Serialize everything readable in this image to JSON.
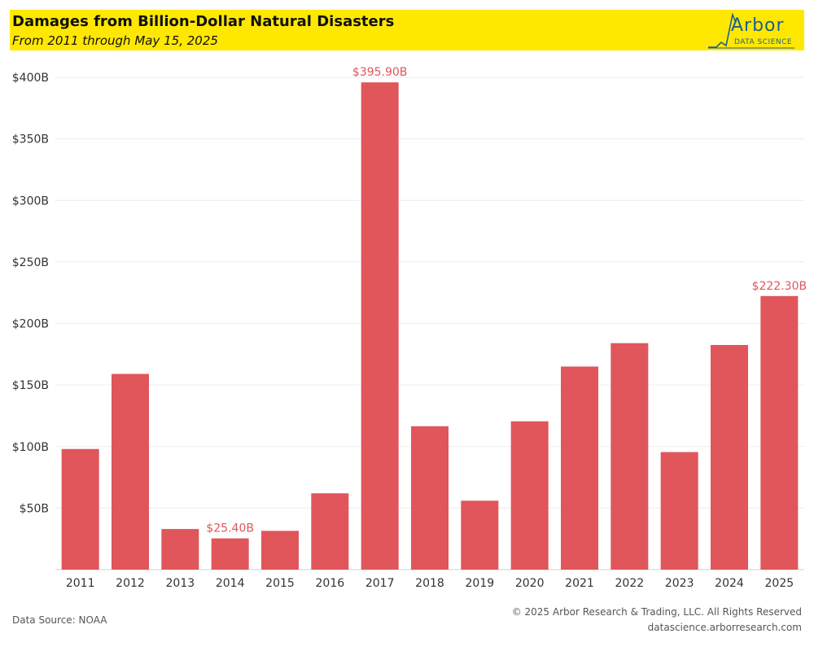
{
  "header": {
    "title": "Damages from Billion-Dollar Natural Disasters",
    "subtitle": "From 2011 through May 15, 2025",
    "background": "#ffe800"
  },
  "logo": {
    "wordmark": "Arbor",
    "tagline": "DATA SCIENCE",
    "color": "#1f5f8b"
  },
  "chart_data": {
    "type": "bar",
    "title": "Damages from Billion-Dollar Natural Disasters",
    "subtitle": "From 2011 through May 15, 2025",
    "xlabel": "",
    "ylabel": "",
    "categories": [
      "2011",
      "2012",
      "2013",
      "2014",
      "2015",
      "2016",
      "2017",
      "2018",
      "2019",
      "2020",
      "2021",
      "2022",
      "2023",
      "2024",
      "2025"
    ],
    "values": [
      98,
      159,
      33,
      25.4,
      31.5,
      62,
      395.9,
      116.5,
      56,
      120.5,
      165,
      184,
      95.5,
      182.5,
      222.3
    ],
    "data_labels": [
      {
        "category": "2014",
        "text": "$25.40B"
      },
      {
        "category": "2017",
        "text": "$395.90B"
      },
      {
        "category": "2025",
        "text": "$222.30B"
      }
    ],
    "yticks": [
      50,
      100,
      150,
      200,
      250,
      300,
      350,
      400
    ],
    "ytick_labels": [
      "$50B",
      "$100B",
      "$150B",
      "$200B",
      "$250B",
      "$300B",
      "$350B",
      "$400B"
    ],
    "ylim": [
      0,
      400
    ],
    "grid": true,
    "bar_color": "#e0565b",
    "label_color": "#e0565b"
  },
  "footer": {
    "source": "Data Source: NOAA",
    "copyright": "© 2025 Arbor Research & Trading, LLC. All Rights Reserved",
    "website": "datascience.arborresearch.com"
  }
}
